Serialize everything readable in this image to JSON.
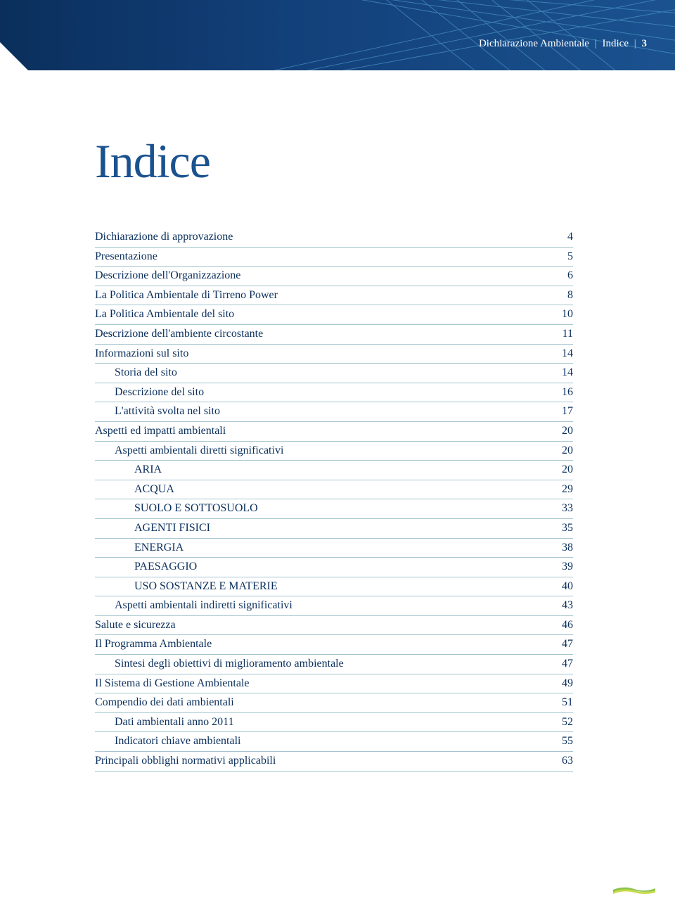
{
  "header": {
    "doc_title": "Dichiarazione Ambientale",
    "section": "Indice",
    "page_number": "3",
    "band_colors": [
      "#0a2f5c",
      "#1a528f"
    ],
    "line_color": "#5aa7d8"
  },
  "page": {
    "title": "Indice",
    "title_color": "#1a528f",
    "title_fontsize": 68,
    "row_border_color": "#a7c5d0",
    "text_color": "#0a2f5c",
    "background": "#ffffff"
  },
  "toc": [
    {
      "label": "Dichiarazione di approvazione",
      "page": "4",
      "indent": 0
    },
    {
      "label": "Presentazione",
      "page": "5",
      "indent": 0
    },
    {
      "label": "Descrizione dell'Organizzazione",
      "page": "6",
      "indent": 0
    },
    {
      "label": "La Politica Ambientale di Tirreno Power",
      "page": "8",
      "indent": 0
    },
    {
      "label": "La Politica Ambientale del sito",
      "page": "10",
      "indent": 0
    },
    {
      "label": "Descrizione dell'ambiente circostante",
      "page": "11",
      "indent": 0
    },
    {
      "label": "Informazioni sul sito",
      "page": "14",
      "indent": 0
    },
    {
      "label": "Storia del sito",
      "page": "14",
      "indent": 1
    },
    {
      "label": "Descrizione del sito",
      "page": "16",
      "indent": 1
    },
    {
      "label": "L'attività svolta nel sito",
      "page": "17",
      "indent": 1
    },
    {
      "label": "Aspetti ed impatti ambientali",
      "page": "20",
      "indent": 0
    },
    {
      "label": "Aspetti ambientali diretti significativi",
      "page": "20",
      "indent": 1
    },
    {
      "label": "ARIA",
      "page": "20",
      "indent": 2
    },
    {
      "label": "ACQUA",
      "page": "29",
      "indent": 2
    },
    {
      "label": "SUOLO E SOTTOSUOLO",
      "page": "33",
      "indent": 2
    },
    {
      "label": "AGENTI FISICI",
      "page": "35",
      "indent": 2
    },
    {
      "label": "ENERGIA",
      "page": "38",
      "indent": 2
    },
    {
      "label": "PAESAGGIO",
      "page": "39",
      "indent": 2
    },
    {
      "label": "USO SOSTANZE E MATERIE",
      "page": "40",
      "indent": 2
    },
    {
      "label": "Aspetti ambientali indiretti significativi",
      "page": "43",
      "indent": 1
    },
    {
      "label": "Salute e sicurezza",
      "page": "46",
      "indent": 0
    },
    {
      "label": "Il Programma Ambientale",
      "page": "47",
      "indent": 0
    },
    {
      "label": "Sintesi degli obiettivi di miglioramento ambientale",
      "page": "47",
      "indent": 1
    },
    {
      "label": "Il Sistema di Gestione Ambientale",
      "page": "49",
      "indent": 0
    },
    {
      "label": "Compendio dei dati ambientali",
      "page": "51",
      "indent": 0
    },
    {
      "label": "Dati ambientali anno 2011",
      "page": "52",
      "indent": 1
    },
    {
      "label": "Indicatori chiave ambientali",
      "page": "55",
      "indent": 1
    },
    {
      "label": "Principali obblighi normativi applicabili",
      "page": "63",
      "indent": 0
    }
  ],
  "footer_accent": {
    "colors": [
      "#7fbf3f",
      "#c7d94a"
    ]
  }
}
